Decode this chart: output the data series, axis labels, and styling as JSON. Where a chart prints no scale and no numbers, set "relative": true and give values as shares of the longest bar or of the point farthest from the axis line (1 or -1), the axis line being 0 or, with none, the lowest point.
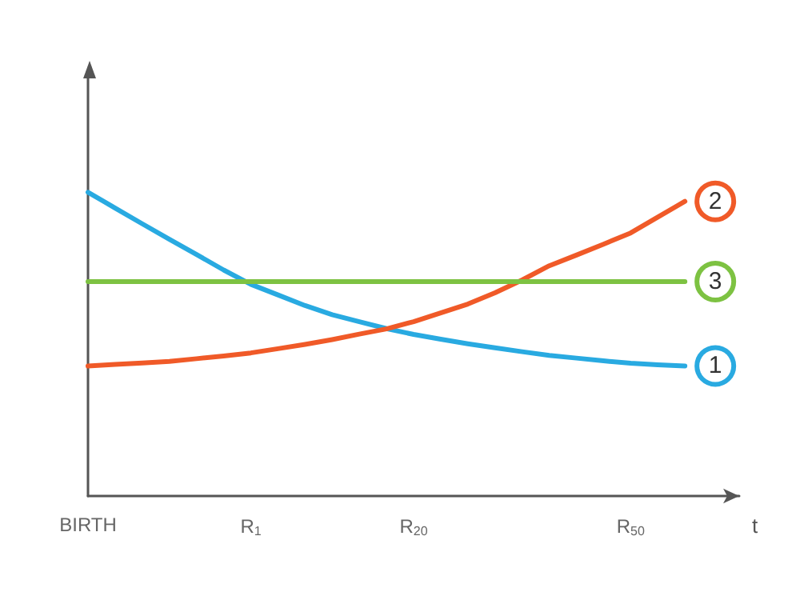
{
  "chart_data": {
    "type": "line",
    "relative": true,
    "xlabel": "t",
    "categories": [
      "BIRTH",
      null,
      null,
      null,
      null,
      null,
      "R$_{1}$",
      null,
      null,
      null,
      null,
      null,
      "R$_{20}$",
      null,
      null,
      null,
      null,
      null,
      null,
      null,
      "R$_{50}$",
      null,
      null,
      null,
      null
    ],
    "series": [
      {
        "name": "1",
        "color": "#29aae1",
        "values": [
          1,
          0.948,
          0.896,
          0.845,
          0.795,
          0.744,
          0.697,
          0.662,
          0.627,
          0.597,
          0.574,
          0.551,
          0.532,
          0.516,
          0.501,
          0.488,
          0.475,
          0.463,
          0.454,
          0.445,
          0.437,
          0.432,
          0.428,
          null,
          null
        ]
      },
      {
        "name": "2",
        "color": "#f05a28",
        "values": [
          0.428,
          0.433,
          0.438,
          0.443,
          0.452,
          0.461,
          0.471,
          0.485,
          0.499,
          0.515,
          0.533,
          0.55,
          0.574,
          0.603,
          0.632,
          0.669,
          0.711,
          0.758,
          0.793,
          0.829,
          0.866,
          0.918,
          0.97,
          null,
          null
        ]
      },
      {
        "name": "3",
        "color": "#7dc242",
        "values": [
          0.706,
          0.706,
          0.706,
          0.706,
          0.706,
          0.706,
          0.706,
          0.706,
          0.706,
          0.706,
          0.706,
          0.706,
          0.706,
          0.706,
          0.706,
          0.706,
          0.706,
          0.706,
          0.706,
          0.706,
          0.706,
          0.706,
          0.706,
          null,
          null
        ]
      }
    ],
    "legend": false,
    "grid": false,
    "marker": "none",
    "line_style": "solid"
  }
}
